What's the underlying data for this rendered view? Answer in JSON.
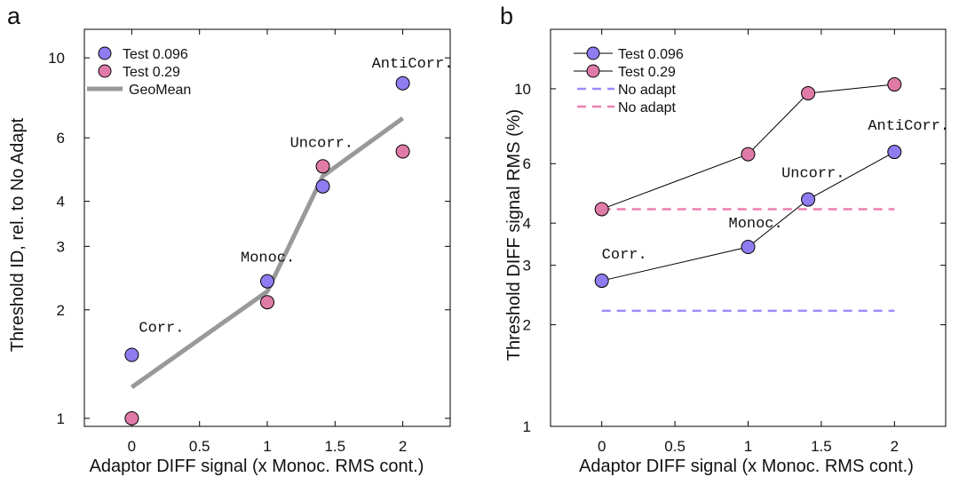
{
  "colors": {
    "test_0096": "#8f7cf0",
    "test_029": "#e07aa6",
    "geomean": "#999999",
    "noadapt_0096": "#9a8cff",
    "noadapt_029": "#ee7fb2",
    "axis": "#000000"
  },
  "chart_data": [
    {
      "panel_label": "a",
      "type": "scatter",
      "xlabel": "Adaptor DIFF signal (x Monoc. RMS cont.)",
      "ylabel": "Threshold ID, rel. to No Adapt",
      "xlim": [
        -0.35,
        2.35
      ],
      "ylim": [
        0.95,
        12.0
      ],
      "yscale": "log",
      "xticks": [
        0,
        0.5,
        1,
        1.5,
        2
      ],
      "xtick_labels": [
        "0",
        "0.5",
        "1",
        "1.5",
        "2"
      ],
      "yticks": [
        1,
        2,
        3,
        4,
        6,
        10
      ],
      "ytick_labels": [
        "1",
        "2",
        "3",
        "4",
        "6",
        "10"
      ],
      "legend_position": "top-left",
      "series": [
        {
          "name": "Test 0.096",
          "style": "marker",
          "color": "#8f7cf0",
          "x": [
            0,
            1,
            1.41,
            2
          ],
          "y": [
            1.5,
            2.4,
            4.4,
            8.5
          ]
        },
        {
          "name": "Test 0.29",
          "style": "marker",
          "color": "#e07aa6",
          "x": [
            0,
            1,
            1.41,
            2
          ],
          "y": [
            1.0,
            2.1,
            5.0,
            5.5
          ]
        },
        {
          "name": "GeoMean",
          "style": "line",
          "color": "#999999",
          "x": [
            0,
            1,
            1.41,
            2
          ],
          "y": [
            1.22,
            2.25,
            4.7,
            6.8
          ]
        }
      ],
      "annotations": [
        {
          "text": "Corr.",
          "x": 0,
          "y": 1.5
        },
        {
          "text": "Monoc.",
          "x": 1,
          "y": 2.4
        },
        {
          "text": "Uncorr.",
          "x": 1.41,
          "y": 5.0
        },
        {
          "text": "AntiCorr.",
          "x": 2,
          "y": 8.5
        }
      ]
    },
    {
      "panel_label": "b",
      "type": "line",
      "xlabel": "Adaptor DIFF signal (x Monoc. RMS cont.)",
      "ylabel": "Threshold DIFF signal RMS (%)",
      "xlim": [
        -0.35,
        2.35
      ],
      "ylim": [
        1.0,
        15.0
      ],
      "yscale": "log",
      "xticks": [
        0,
        0.5,
        1,
        1.5,
        2
      ],
      "xtick_labels": [
        "0",
        "0.5",
        "1",
        "1.5",
        "2"
      ],
      "yticks": [
        1,
        2,
        3,
        4,
        6,
        10
      ],
      "ytick_labels": [
        "1",
        "2",
        "3",
        "4",
        "6",
        "10"
      ],
      "legend_position": "top-left",
      "series": [
        {
          "name": "Test 0.096",
          "style": "line-marker",
          "color": "#8f7cf0",
          "x": [
            0,
            1,
            1.41,
            2
          ],
          "y": [
            2.7,
            3.4,
            4.7,
            6.5
          ]
        },
        {
          "name": "Test 0.29",
          "style": "line-marker",
          "color": "#e07aa6",
          "x": [
            0,
            1,
            1.41,
            2
          ],
          "y": [
            4.4,
            6.4,
            9.7,
            10.3
          ]
        },
        {
          "name": "No adapt",
          "style": "dashed",
          "color": "#9a8cff",
          "x": [
            0,
            2
          ],
          "y": [
            2.2,
            2.2
          ]
        },
        {
          "name": "No adapt",
          "style": "dashed",
          "color": "#ee7fb2",
          "x": [
            0,
            2
          ],
          "y": [
            4.4,
            4.4
          ]
        }
      ],
      "annotations": [
        {
          "text": "Corr.",
          "x": 0,
          "y": 2.7
        },
        {
          "text": "Monoc.",
          "x": 1,
          "y": 3.4
        },
        {
          "text": "Uncorr.",
          "x": 1.41,
          "y": 4.7
        },
        {
          "text": "AntiCorr.",
          "x": 2,
          "y": 6.5
        }
      ]
    }
  ]
}
